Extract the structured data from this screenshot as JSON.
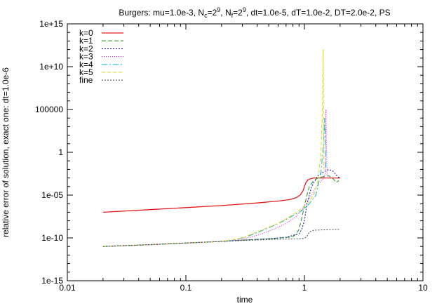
{
  "chart_data": {
    "type": "line",
    "title": "Burgers: mu=1.0e-3, N_c=2^9, N_f=2^9, dt=1.0e-5, dT=1.0e-2, DT=2.0e-2, PS",
    "title_parts": {
      "prefix": "Burgers: mu=1.0e-3, N",
      "nc_sub": "c",
      "nc_eq": "=2",
      "nc_exp": "9",
      "sep": ", N",
      "nf_sub": "f",
      "nf_eq": "=2",
      "nf_exp": "9",
      "suffix": ", dt=1.0e-5, dT=1.0e-2, DT=2.0e-2, PS"
    },
    "xlabel": "time",
    "ylabel": "relative error of solution, exact one: dt=1.0e-6",
    "x_scale": "log",
    "y_scale": "log",
    "xlim": [
      0.01,
      10
    ],
    "ylim": [
      1e-15,
      1000000000000000.0
    ],
    "x_ticks": [
      {
        "value": 0.01,
        "label": "0.01"
      },
      {
        "value": 0.1,
        "label": "0.1"
      },
      {
        "value": 1,
        "label": "1"
      },
      {
        "value": 10,
        "label": "10"
      }
    ],
    "y_ticks": [
      {
        "value": 1e-15,
        "label": "1e-15"
      },
      {
        "value": 1e-10,
        "label": "1e-10"
      },
      {
        "value": 1e-05,
        "label": "1e-05"
      },
      {
        "value": 1,
        "label": "1"
      },
      {
        "value": 100000.0,
        "label": "100000"
      },
      {
        "value": 10000000000.0,
        "label": "1e+10"
      },
      {
        "value": 1000000000000000.0,
        "label": "1e+15"
      }
    ],
    "grid": false,
    "legend_position": "top-left",
    "series": [
      {
        "name": "k=0",
        "color": "#e41a1c",
        "dash": "",
        "x": [
          0.02,
          0.05,
          0.1,
          0.2,
          0.4,
          0.6,
          0.75,
          0.85,
          0.92,
          0.97,
          1.0,
          1.03,
          1.07,
          1.12,
          1.2,
          1.4,
          1.7,
          2.0
        ],
        "y": [
          1e-07,
          2e-07,
          3.5e-07,
          6e-07,
          1.2e-06,
          2e-06,
          3e-06,
          5e-06,
          1e-05,
          3e-05,
          0.0001,
          0.0003,
          0.0006,
          0.0008,
          0.001,
          0.001,
          0.001,
          0.001
        ]
      },
      {
        "name": "k=1",
        "color": "#2ca02c",
        "dash": "6,3",
        "x": [
          0.02,
          0.05,
          0.1,
          0.2,
          0.3,
          0.5,
          0.7,
          0.8,
          0.85,
          0.9,
          0.95,
          1.0,
          1.05,
          1.1,
          1.2,
          1.3,
          1.45,
          1.6,
          1.75,
          1.85,
          1.95
        ],
        "y": [
          1e-11,
          1.6e-11,
          2.5e-11,
          4e-11,
          5.5e-11,
          8e-11,
          1.1e-10,
          1.4e-10,
          3e-10,
          1e-09,
          2e-08,
          5e-07,
          1e-05,
          0.0001,
          0.0005,
          0.001,
          0.0015,
          0.0018,
          0.0008,
          0.0003,
          0.0005
        ]
      },
      {
        "name": "k=2",
        "color": "#1f1fa8",
        "dash": "2,2",
        "x": [
          0.02,
          0.05,
          0.1,
          0.2,
          0.3,
          0.5,
          0.7,
          0.9,
          0.95,
          1.0,
          1.05,
          1.15,
          1.3,
          1.45,
          1.6,
          1.75,
          1.9,
          2.0
        ],
        "y": [
          1e-11,
          1.6e-11,
          2.5e-11,
          4e-11,
          5.5e-11,
          8e-11,
          1.2e-10,
          3e-10,
          1e-09,
          1e-08,
          1e-06,
          0.0001,
          0.002,
          0.005,
          0.01,
          0.006,
          0.0015,
          0.001
        ]
      },
      {
        "name": "k=3",
        "color": "#d62ad6",
        "dash": "1,2",
        "x": [
          0.02,
          0.05,
          0.1,
          0.2,
          0.28,
          0.4,
          0.55,
          0.7,
          0.85,
          0.95,
          1.05,
          1.15,
          1.25,
          1.35,
          1.45,
          1.5,
          1.52,
          1.55,
          1.6
        ],
        "y": [
          1e-11,
          1.6e-11,
          2.5e-11,
          4e-11,
          6e-11,
          2e-10,
          1e-09,
          5e-09,
          3e-08,
          2e-07,
          1.5e-06,
          1e-05,
          8e-05,
          0.0003,
          0.001,
          0.003,
          100000.0,
          0.003,
          0.001
        ]
      },
      {
        "name": "k=4",
        "color": "#17becf",
        "dash": "8,3,2,3",
        "x": [
          0.02,
          0.05,
          0.1,
          0.2,
          0.25,
          0.35,
          0.5,
          0.65,
          0.8,
          0.95,
          1.1,
          1.25,
          1.38,
          1.45,
          1.48,
          1.52
        ],
        "y": [
          1e-11,
          1.6e-11,
          2.5e-11,
          4e-11,
          5e-11,
          2e-10,
          1.5e-09,
          8e-09,
          4e-08,
          1.5e-07,
          1e-06,
          1e-05,
          0.005,
          10,
          10000.0,
          0.01
        ]
      },
      {
        "name": "k=5",
        "color": "#f2d027",
        "dash": "5,3",
        "x": [
          0.02,
          0.05,
          0.1,
          0.2,
          0.3,
          0.45,
          0.6,
          0.75,
          0.9,
          1.05,
          1.2,
          1.3,
          1.38,
          1.42,
          1.44,
          1.46
        ],
        "y": [
          1e-11,
          1.6e-11,
          2.5e-11,
          4e-11,
          1e-10,
          1e-09,
          5e-09,
          3e-08,
          1.5e-07,
          1e-06,
          1e-05,
          0.0005,
          1,
          100000.0,
          1000000000000.0,
          0.01
        ]
      },
      {
        "name": "fine",
        "color": "#555555",
        "dash": "2,2",
        "x": [
          0.02,
          0.1,
          0.3,
          0.6,
          0.9,
          1.0,
          1.05,
          1.1,
          1.2,
          1.5,
          2.0
        ],
        "y": [
          1e-11,
          2.5e-11,
          5e-11,
          7e-11,
          8e-11,
          9e-11,
          1.5e-10,
          5e-10,
          8e-10,
          9e-10,
          1e-09
        ]
      }
    ]
  }
}
